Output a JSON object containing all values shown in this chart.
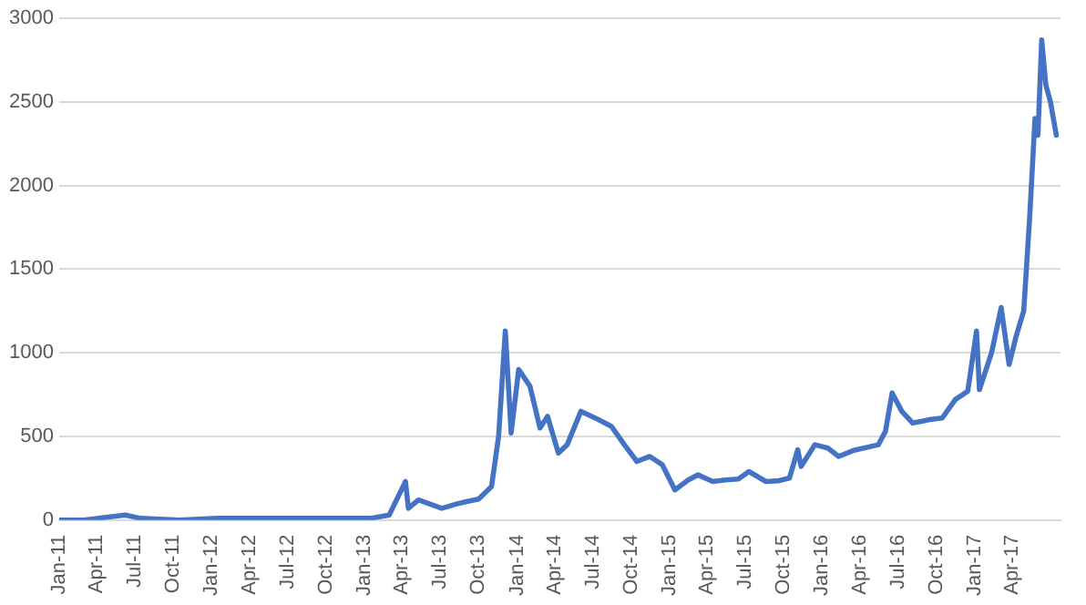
{
  "chart_data": {
    "type": "line",
    "x": [
      "2011-01-01",
      "2011-03-01",
      "2011-06-08",
      "2011-07-15",
      "2011-10-15",
      "2012-01-15",
      "2012-06-01",
      "2012-08-15",
      "2012-10-15",
      "2013-01-15",
      "2013-03-01",
      "2013-04-09",
      "2013-04-16",
      "2013-05-10",
      "2013-07-05",
      "2013-08-15",
      "2013-10-01",
      "2013-11-01",
      "2013-11-18",
      "2013-12-04",
      "2013-12-18",
      "2014-01-05",
      "2014-02-01",
      "2014-02-25",
      "2014-03-15",
      "2014-04-10",
      "2014-05-01",
      "2014-06-03",
      "2014-07-15",
      "2014-08-15",
      "2014-09-15",
      "2014-10-15",
      "2014-11-15",
      "2014-12-15",
      "2015-01-14",
      "2015-02-15",
      "2015-03-10",
      "2015-04-15",
      "2015-05-15",
      "2015-06-15",
      "2015-07-10",
      "2015-08-20",
      "2015-09-20",
      "2015-10-15",
      "2015-11-04",
      "2015-11-12",
      "2015-12-15",
      "2016-01-15",
      "2016-02-10",
      "2016-03-15",
      "2016-05-15",
      "2016-06-01",
      "2016-06-17",
      "2016-07-10",
      "2016-08-05",
      "2016-09-15",
      "2016-10-15",
      "2016-11-15",
      "2016-12-15",
      "2017-01-05",
      "2017-01-12",
      "2017-02-10",
      "2017-03-05",
      "2017-03-24",
      "2017-04-10",
      "2017-04-28",
      "2017-05-12",
      "2017-05-25",
      "2017-06-01",
      "2017-06-10",
      "2017-06-20",
      "2017-07-01",
      "2017-07-15"
    ],
    "series": [
      {
        "color": "#4472c4",
        "values": [
          0,
          0,
          30,
          10,
          0,
          10,
          10,
          10,
          10,
          10,
          30,
          230,
          70,
          120,
          70,
          100,
          125,
          200,
          500,
          1130,
          520,
          900,
          800,
          550,
          620,
          400,
          450,
          650,
          600,
          560,
          450,
          350,
          380,
          330,
          180,
          240,
          270,
          230,
          240,
          245,
          290,
          230,
          235,
          250,
          420,
          320,
          450,
          430,
          380,
          415,
          450,
          530,
          760,
          650,
          580,
          600,
          610,
          720,
          770,
          1130,
          780,
          1000,
          1270,
          930,
          1100,
          1250,
          1800,
          2400,
          2300,
          2870,
          2600,
          2500,
          2300
        ]
      }
    ],
    "xlim": [
      "2011-01-01",
      "2017-07-25"
    ],
    "xticks": [
      {
        "value": "2011-01-01",
        "label": "Jan-11"
      },
      {
        "value": "2011-04-01",
        "label": "Apr-11"
      },
      {
        "value": "2011-07-01",
        "label": "Jul-11"
      },
      {
        "value": "2011-10-01",
        "label": "Oct-11"
      },
      {
        "value": "2012-01-01",
        "label": "Jan-12"
      },
      {
        "value": "2012-04-01",
        "label": "Apr-12"
      },
      {
        "value": "2012-07-01",
        "label": "Jul-12"
      },
      {
        "value": "2012-10-01",
        "label": "Oct-12"
      },
      {
        "value": "2013-01-01",
        "label": "Jan-13"
      },
      {
        "value": "2013-04-01",
        "label": "Apr-13"
      },
      {
        "value": "2013-07-01",
        "label": "Jul-13"
      },
      {
        "value": "2013-10-01",
        "label": "Oct-13"
      },
      {
        "value": "2014-01-01",
        "label": "Jan-14"
      },
      {
        "value": "2014-04-01",
        "label": "Apr-14"
      },
      {
        "value": "2014-07-01",
        "label": "Jul-14"
      },
      {
        "value": "2014-10-01",
        "label": "Oct-14"
      },
      {
        "value": "2015-01-01",
        "label": "Jan-15"
      },
      {
        "value": "2015-04-01",
        "label": "Apr-15"
      },
      {
        "value": "2015-07-01",
        "label": "Jul-15"
      },
      {
        "value": "2015-10-01",
        "label": "Oct-15"
      },
      {
        "value": "2016-01-01",
        "label": "Jan-16"
      },
      {
        "value": "2016-04-01",
        "label": "Apr-16"
      },
      {
        "value": "2016-07-01",
        "label": "Jul-16"
      },
      {
        "value": "2016-10-01",
        "label": "Oct-16"
      },
      {
        "value": "2017-01-01",
        "label": "Jan-17"
      },
      {
        "value": "2017-04-01",
        "label": "Apr-17"
      }
    ],
    "ylim": [
      0,
      3000
    ],
    "yticks": [
      0,
      500,
      1000,
      1500,
      2000,
      2500,
      3000
    ],
    "grid": "y",
    "legend": false,
    "marker": "none",
    "line_style": "solid"
  }
}
